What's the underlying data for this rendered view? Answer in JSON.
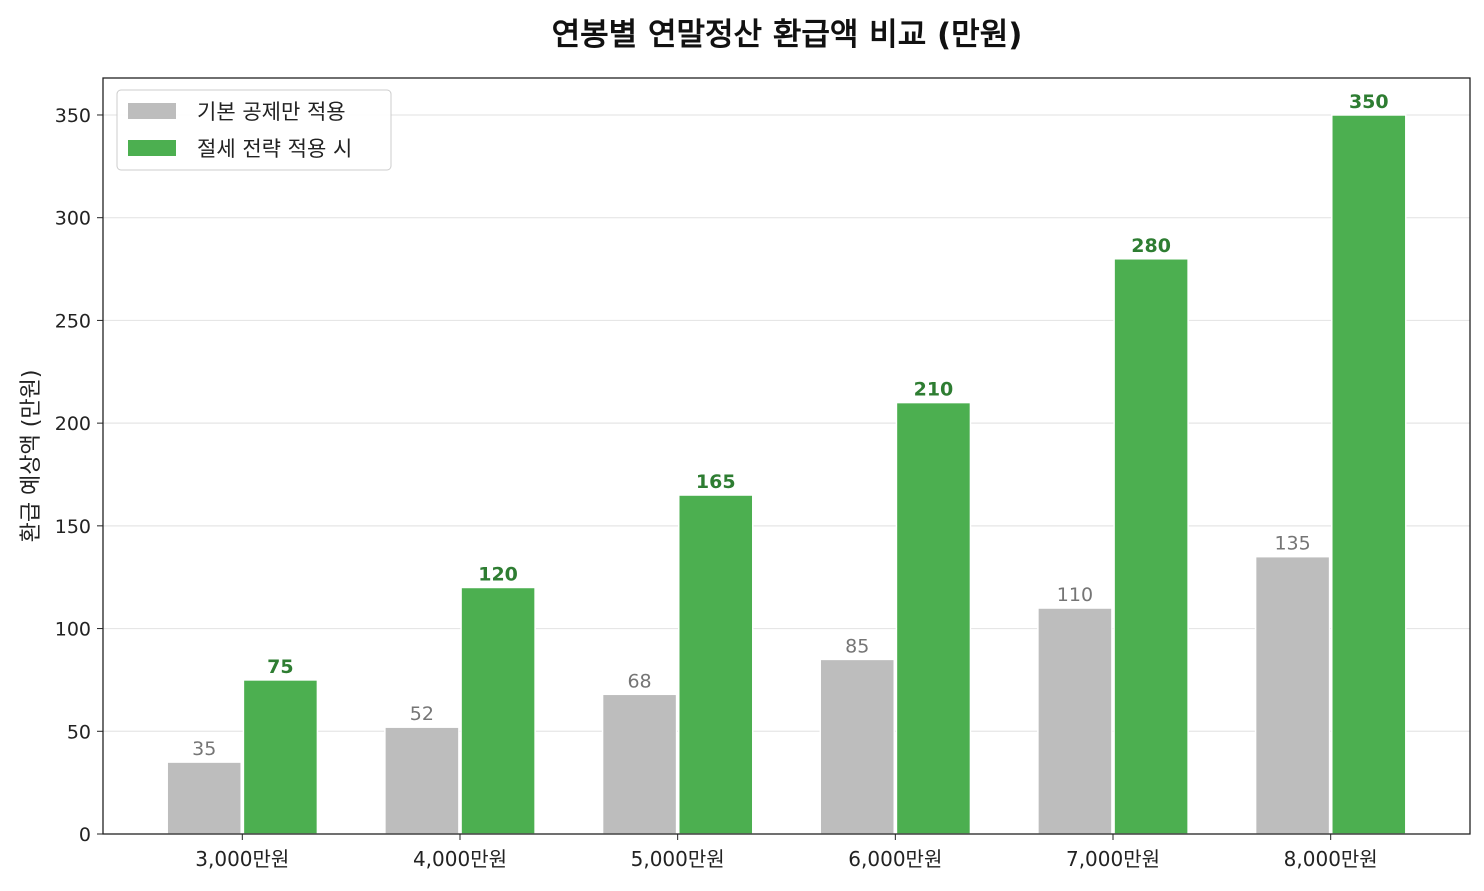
{
  "chart_data": {
    "type": "bar",
    "title": "연봉별 연말정산 환급액 비교 (만원)",
    "xlabel": "",
    "ylabel": "환급 예상액 (만원)",
    "categories": [
      "3,000만원",
      "4,000만원",
      "5,000만원",
      "6,000만원",
      "7,000만원",
      "8,000만원"
    ],
    "series": [
      {
        "name": "기본 공제만 적용",
        "values": [
          35,
          52,
          68,
          85,
          110,
          135
        ],
        "color": "#bdbdbd",
        "label_color": "#757575"
      },
      {
        "name": "절세 전략 적용 시",
        "values": [
          75,
          120,
          165,
          210,
          280,
          350
        ],
        "color": "#4caf50",
        "label_color": "#2e7d32"
      }
    ],
    "ylim": [
      0,
      368
    ],
    "yticks": [
      0,
      50,
      100,
      150,
      200,
      250,
      300,
      350
    ],
    "grid": "horizontal",
    "legend": "top-left",
    "data_labels": true
  }
}
